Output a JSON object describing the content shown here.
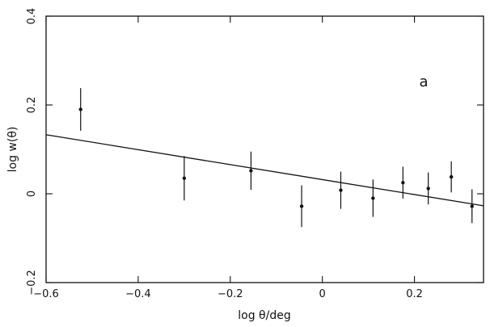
{
  "chart_data": {
    "type": "scatter",
    "panel_label": "a",
    "xlabel": "log θ/deg",
    "ylabel": "log w(θ)",
    "xlim": [
      -0.6,
      0.35
    ],
    "ylim": [
      -0.2,
      0.4
    ],
    "x_ticks": [
      {
        "value": -0.6,
        "label": "−0.6"
      },
      {
        "value": -0.4,
        "label": "−0.4"
      },
      {
        "value": -0.2,
        "label": "−0.2"
      },
      {
        "value": 0,
        "label": "0"
      },
      {
        "value": 0.2,
        "label": "0.2"
      }
    ],
    "y_ticks": [
      {
        "value": -0.2,
        "label": "−0.2"
      },
      {
        "value": 0,
        "label": "0"
      },
      {
        "value": 0.2,
        "label": "0.2"
      },
      {
        "value": 0.4,
        "label": "0.4"
      }
    ],
    "points": [
      {
        "x": -0.525,
        "y": 0.19,
        "err": 0.048
      },
      {
        "x": -0.3,
        "y": 0.035,
        "err": 0.05
      },
      {
        "x": -0.155,
        "y": 0.052,
        "err": 0.043
      },
      {
        "x": -0.045,
        "y": -0.028,
        "err": 0.047
      },
      {
        "x": 0.04,
        "y": 0.008,
        "err": 0.042
      },
      {
        "x": 0.11,
        "y": -0.01,
        "err": 0.042
      },
      {
        "x": 0.175,
        "y": 0.025,
        "err": 0.036
      },
      {
        "x": 0.23,
        "y": 0.012,
        "err": 0.036
      },
      {
        "x": 0.28,
        "y": 0.038,
        "err": 0.035
      },
      {
        "x": 0.325,
        "y": -0.028,
        "err": 0.038
      }
    ],
    "fit_line": {
      "x": [
        -0.6,
        0.35
      ],
      "y": [
        0.133,
        -0.027
      ]
    },
    "grid": false,
    "legend": "none"
  }
}
